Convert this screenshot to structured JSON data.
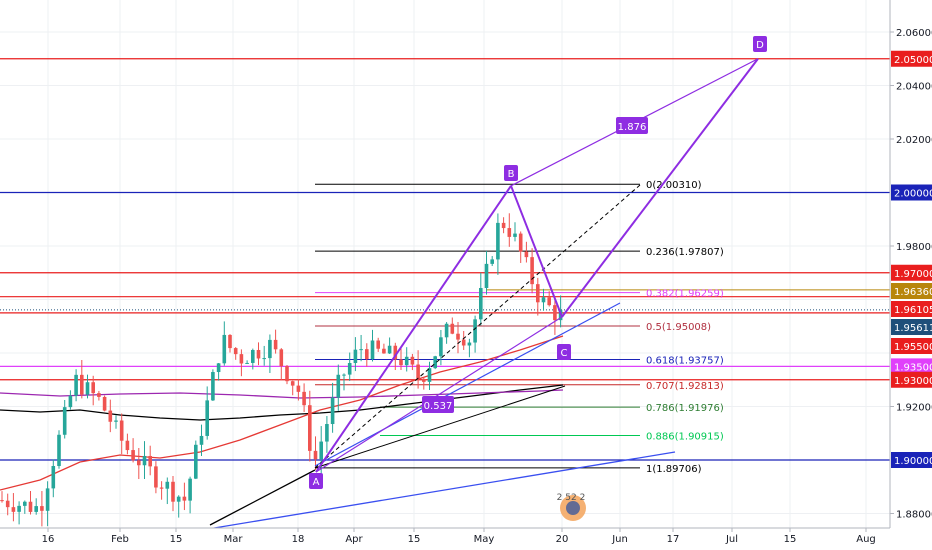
{
  "chart_data": {
    "type": "candlestick",
    "y_axis": {
      "range": [
        1.875,
        2.075
      ],
      "ticks": [
        "2.06000",
        "2.04000",
        "2.02000",
        "1.98000",
        "1.92000",
        "1.88000"
      ]
    },
    "x_axis": {
      "ticks": [
        "16",
        "Feb",
        "15",
        "Mar",
        "18",
        "Apr",
        "15",
        "May",
        "20",
        "Jun",
        "17",
        "Jul",
        "15",
        "Aug"
      ]
    },
    "price_tags": [
      {
        "label": "2.05000",
        "price": 2.05,
        "color": "#e91e1e"
      },
      {
        "label": "2.00000",
        "price": 2.0,
        "color": "#1a23b8"
      },
      {
        "label": "1.97000",
        "price": 1.97,
        "color": "#e91e1e"
      },
      {
        "label": "1.96360",
        "price": 1.9636,
        "color": "#b8860b"
      },
      {
        "label": "1.96105",
        "price": 1.96105,
        "color": "#e91e1e"
      },
      {
        "label": "1.95611",
        "price": 1.95611,
        "color": "#1f4f7a"
      },
      {
        "label": "1.95500",
        "price": 1.955,
        "color": "#e91e1e"
      },
      {
        "label": "1.93500",
        "price": 1.935,
        "color": "#e040fb"
      },
      {
        "label": "1.93000",
        "price": 1.93,
        "color": "#e91e1e"
      },
      {
        "label": "1.90000",
        "price": 1.9,
        "color": "#1a23b8"
      }
    ],
    "fib_levels": [
      {
        "label": "0(2.00310)",
        "price": 2.0031,
        "color": "#000000"
      },
      {
        "label": "0.236(1.97807)",
        "price": 1.97807,
        "color": "#000000"
      },
      {
        "label": "0.382(1.96259)",
        "price": 1.96259,
        "color": "#e040fb"
      },
      {
        "label": "0.5(1.95008)",
        "price": 1.95008,
        "color": "#b03040"
      },
      {
        "label": "0.618(1.93757)",
        "price": 1.93757,
        "color": "#1a23b8"
      },
      {
        "label": "0.707(1.92813)",
        "price": 1.92813,
        "color": "#c62828"
      },
      {
        "label": "0.786(1.91976)",
        "price": 1.91976,
        "color": "#2e7d32"
      },
      {
        "label": "0.886(1.90915)",
        "price": 1.90915,
        "color": "#00c853"
      },
      {
        "label": "1(1.89706)",
        "price": 1.89706,
        "color": "#000000"
      }
    ],
    "pattern_points": [
      {
        "label": "A",
        "price": 1.8955
      },
      {
        "label": "B",
        "price": 2.0025
      },
      {
        "label": "C",
        "price": 1.9535
      },
      {
        "label": "D",
        "price": 2.05
      }
    ],
    "ratios": [
      "0.537",
      "1.876"
    ],
    "colors": {
      "up": "#26a69a",
      "down": "#ef5350",
      "pattern": "#8e2de2"
    }
  },
  "watermark": {
    "text": "2 52 2"
  }
}
